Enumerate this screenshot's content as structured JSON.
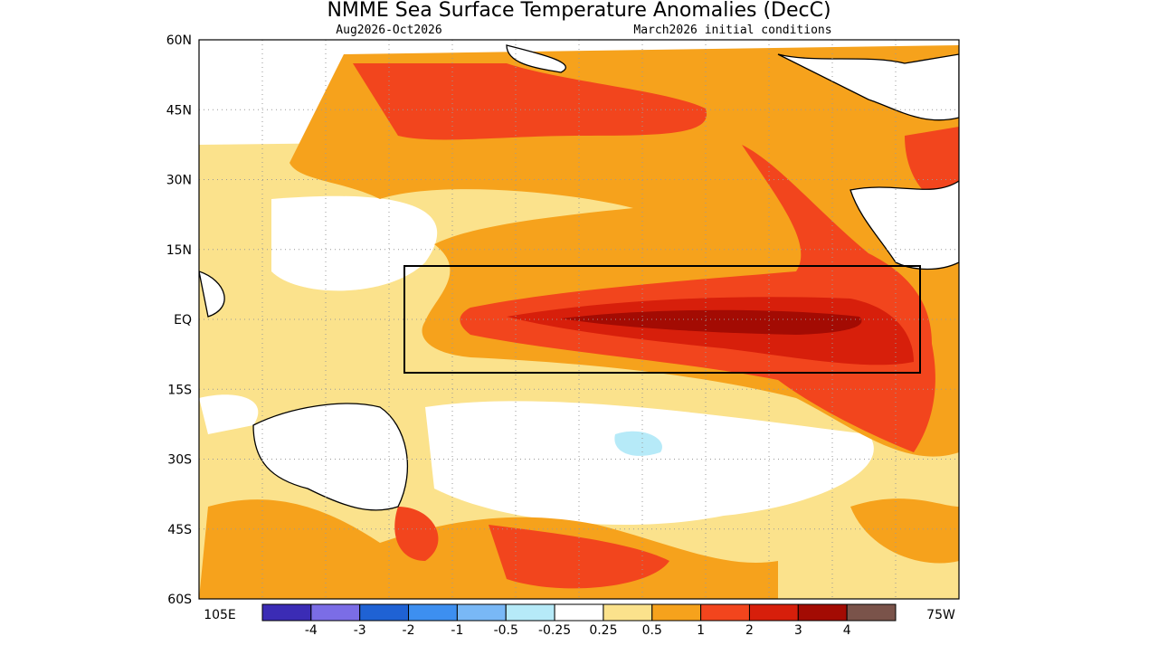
{
  "map": {
    "title": "NMME Sea Surface Temperature Anomalies (DecC)",
    "period": "Aug2026-Oct2026",
    "init": "March2026 initial conditions",
    "lat_labels": [
      "60N",
      "45N",
      "30N",
      "15N",
      "EQ",
      "15S",
      "30S",
      "45S",
      "60S"
    ],
    "lon_labels": [
      "105E",
      "75W"
    ]
  },
  "colorbar": {
    "colors": [
      "#3b2cb5",
      "#7b6de6",
      "#1f62d4",
      "#3d8ff0",
      "#79b8f6",
      "#b6eaf8",
      "#ffffff",
      "#fbe28c",
      "#f6a21c",
      "#f2451d",
      "#d71f0b",
      "#a30b03",
      "#7a534a"
    ],
    "labels": [
      -4,
      -3,
      -2,
      -1,
      -0.5,
      -0.25,
      0.25,
      0.5,
      1,
      2,
      3,
      4
    ]
  }
}
